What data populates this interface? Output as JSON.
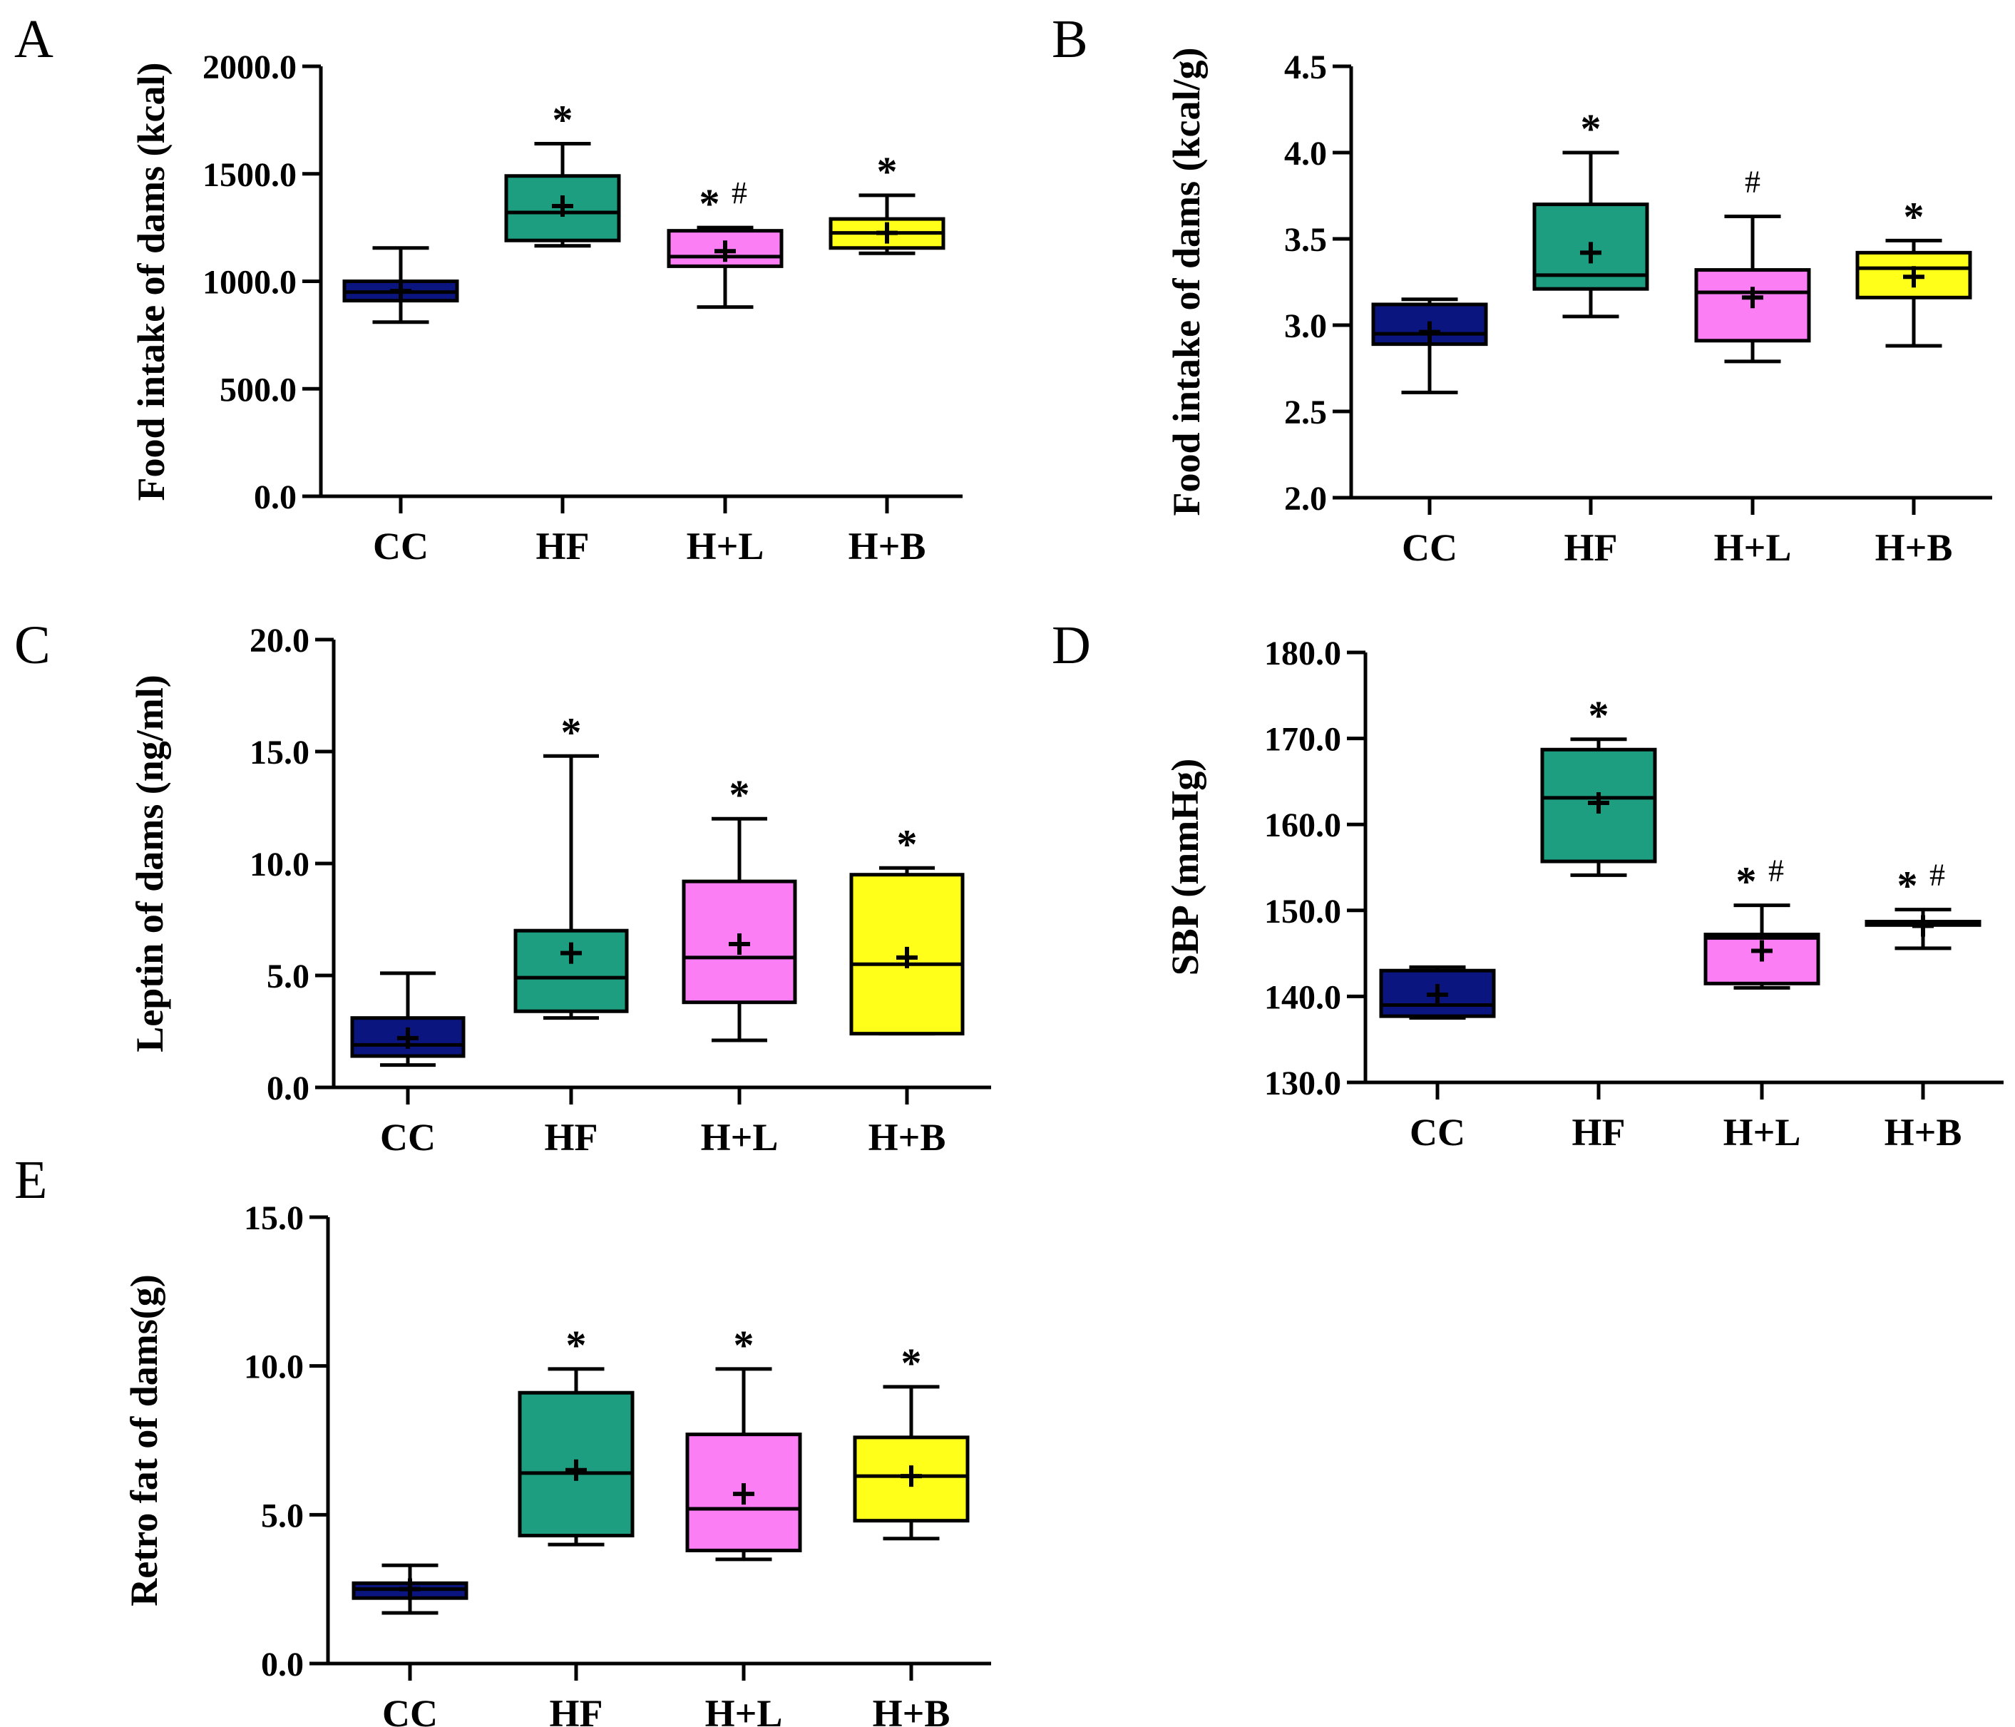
{
  "colors": {
    "CC": "#0a1580",
    "HF": "#1e9e80",
    "H+L": "#fb7ef5",
    "H+B": "#ffff1a",
    "ink": "#000000"
  },
  "chart_data": [
    {
      "id": "A",
      "type": "box",
      "panel_label": "A",
      "title": "",
      "xlabel": "",
      "ylabel": "Food intake of dams (kcal)",
      "ylim": [
        0,
        2000
      ],
      "yticks": [
        0,
        500,
        1000,
        1500,
        2000
      ],
      "ytick_labels": [
        "0.0",
        "500.0",
        "1000.0",
        "1500.0",
        "2000.0"
      ],
      "categories": [
        "CC",
        "HF",
        "H+L",
        "H+B"
      ],
      "boxes": [
        {
          "min": 810,
          "q1": 910,
          "median": 950,
          "q3": 1000,
          "max": 1155,
          "mean": 955
        },
        {
          "min": 1165,
          "q1": 1190,
          "median": 1320,
          "q3": 1490,
          "max": 1640,
          "mean": 1350
        },
        {
          "min": 880,
          "q1": 1070,
          "median": 1115,
          "q3": 1235,
          "max": 1250,
          "mean": 1140
        },
        {
          "min": 1130,
          "q1": 1155,
          "median": 1225,
          "q3": 1290,
          "max": 1400,
          "mean": 1225
        }
      ],
      "annotations": [
        "",
        "*",
        "*#",
        "*"
      ],
      "grid": false,
      "legend": "none"
    },
    {
      "id": "B",
      "type": "box",
      "panel_label": "B",
      "title": "",
      "xlabel": "",
      "ylabel": "Food intake of dams (kcal/g)",
      "ylim": [
        2.0,
        4.5
      ],
      "yticks": [
        2.0,
        2.5,
        3.0,
        3.5,
        4.0,
        4.5
      ],
      "ytick_labels": [
        "2.0",
        "2.5",
        "3.0",
        "3.5",
        "4.0",
        "4.5"
      ],
      "categories": [
        "CC",
        "HF",
        "H+L",
        "H+B"
      ],
      "boxes": [
        {
          "min": 2.61,
          "q1": 2.89,
          "median": 2.95,
          "q3": 3.12,
          "max": 3.15,
          "mean": 2.96
        },
        {
          "min": 3.05,
          "q1": 3.21,
          "median": 3.29,
          "q3": 3.7,
          "max": 4.0,
          "mean": 3.42
        },
        {
          "min": 2.79,
          "q1": 2.91,
          "median": 3.19,
          "q3": 3.32,
          "max": 3.63,
          "mean": 3.16
        },
        {
          "min": 2.88,
          "q1": 3.16,
          "median": 3.33,
          "q3": 3.42,
          "max": 3.49,
          "mean": 3.28
        }
      ],
      "annotations": [
        "",
        "*",
        "#",
        "*"
      ],
      "grid": false,
      "legend": "none"
    },
    {
      "id": "C",
      "type": "box",
      "panel_label": "C",
      "title": "",
      "xlabel": "",
      "ylabel": "Leptin of dams (ng/ml)",
      "ylim": [
        0,
        20
      ],
      "yticks": [
        0,
        5,
        10,
        15,
        20
      ],
      "ytick_labels": [
        "0.0",
        "5.0",
        "10.0",
        "15.0",
        "20.0"
      ],
      "categories": [
        "CC",
        "HF",
        "H+L",
        "H+B"
      ],
      "boxes": [
        {
          "min": 1.0,
          "q1": 1.4,
          "median": 1.9,
          "q3": 3.1,
          "max": 5.1,
          "mean": 2.2
        },
        {
          "min": 3.1,
          "q1": 3.4,
          "median": 4.9,
          "q3": 7.0,
          "max": 14.8,
          "mean": 6.0
        },
        {
          "min": 2.1,
          "q1": 3.8,
          "median": 5.8,
          "q3": 9.2,
          "max": 12.0,
          "mean": 6.4
        },
        {
          "min": 2.4,
          "q1": 2.4,
          "median": 5.5,
          "q3": 9.5,
          "max": 9.8,
          "mean": 5.8
        }
      ],
      "annotations": [
        "",
        "*",
        "*",
        "*"
      ],
      "grid": false,
      "legend": "none"
    },
    {
      "id": "D",
      "type": "box",
      "panel_label": "D",
      "title": "",
      "xlabel": "",
      "ylabel": "SBP (mmHg)",
      "ylim": [
        130,
        180
      ],
      "yticks": [
        130,
        140,
        150,
        160,
        170,
        180
      ],
      "ytick_labels": [
        "130.0",
        "140.0",
        "150.0",
        "160.0",
        "170.0",
        "180.0"
      ],
      "categories": [
        "CC",
        "HF",
        "H+L",
        "H+B"
      ],
      "boxes": [
        {
          "min": 137.5,
          "q1": 137.7,
          "median": 139.0,
          "q3": 143.0,
          "max": 143.4,
          "mean": 140.2
        },
        {
          "min": 154.1,
          "q1": 155.7,
          "median": 163.1,
          "q3": 168.7,
          "max": 169.9,
          "mean": 162.5
        },
        {
          "min": 141.0,
          "q1": 141.5,
          "median": 146.8,
          "q3": 147.2,
          "max": 150.6,
          "mean": 145.3
        },
        {
          "min": 145.6,
          "q1": 148.3,
          "median": 148.5,
          "q3": 148.7,
          "max": 150.1,
          "mean": 148.2
        }
      ],
      "annotations": [
        "",
        "*",
        "*#",
        "*#"
      ],
      "grid": false,
      "legend": "none"
    },
    {
      "id": "E",
      "type": "box",
      "panel_label": "E",
      "title": "",
      "xlabel": "",
      "ylabel": "Retro fat of dams(g)",
      "ylim": [
        0,
        15
      ],
      "yticks": [
        0,
        5,
        10,
        15
      ],
      "ytick_labels": [
        "0.0",
        "5.0",
        "10.0",
        "15.0"
      ],
      "categories": [
        "CC",
        "HF",
        "H+L",
        "H+B"
      ],
      "boxes": [
        {
          "min": 1.7,
          "q1": 2.2,
          "median": 2.5,
          "q3": 2.7,
          "max": 3.3,
          "mean": 2.5
        },
        {
          "min": 4.0,
          "q1": 4.3,
          "median": 6.4,
          "q3": 9.1,
          "max": 9.9,
          "mean": 6.5
        },
        {
          "min": 3.5,
          "q1": 3.8,
          "median": 5.2,
          "q3": 7.7,
          "max": 9.9,
          "mean": 5.7
        },
        {
          "min": 4.2,
          "q1": 4.8,
          "median": 6.3,
          "q3": 7.6,
          "max": 9.3,
          "mean": 6.3
        }
      ],
      "annotations": [
        "",
        "*",
        "*",
        "*"
      ],
      "grid": false,
      "legend": "none"
    }
  ]
}
